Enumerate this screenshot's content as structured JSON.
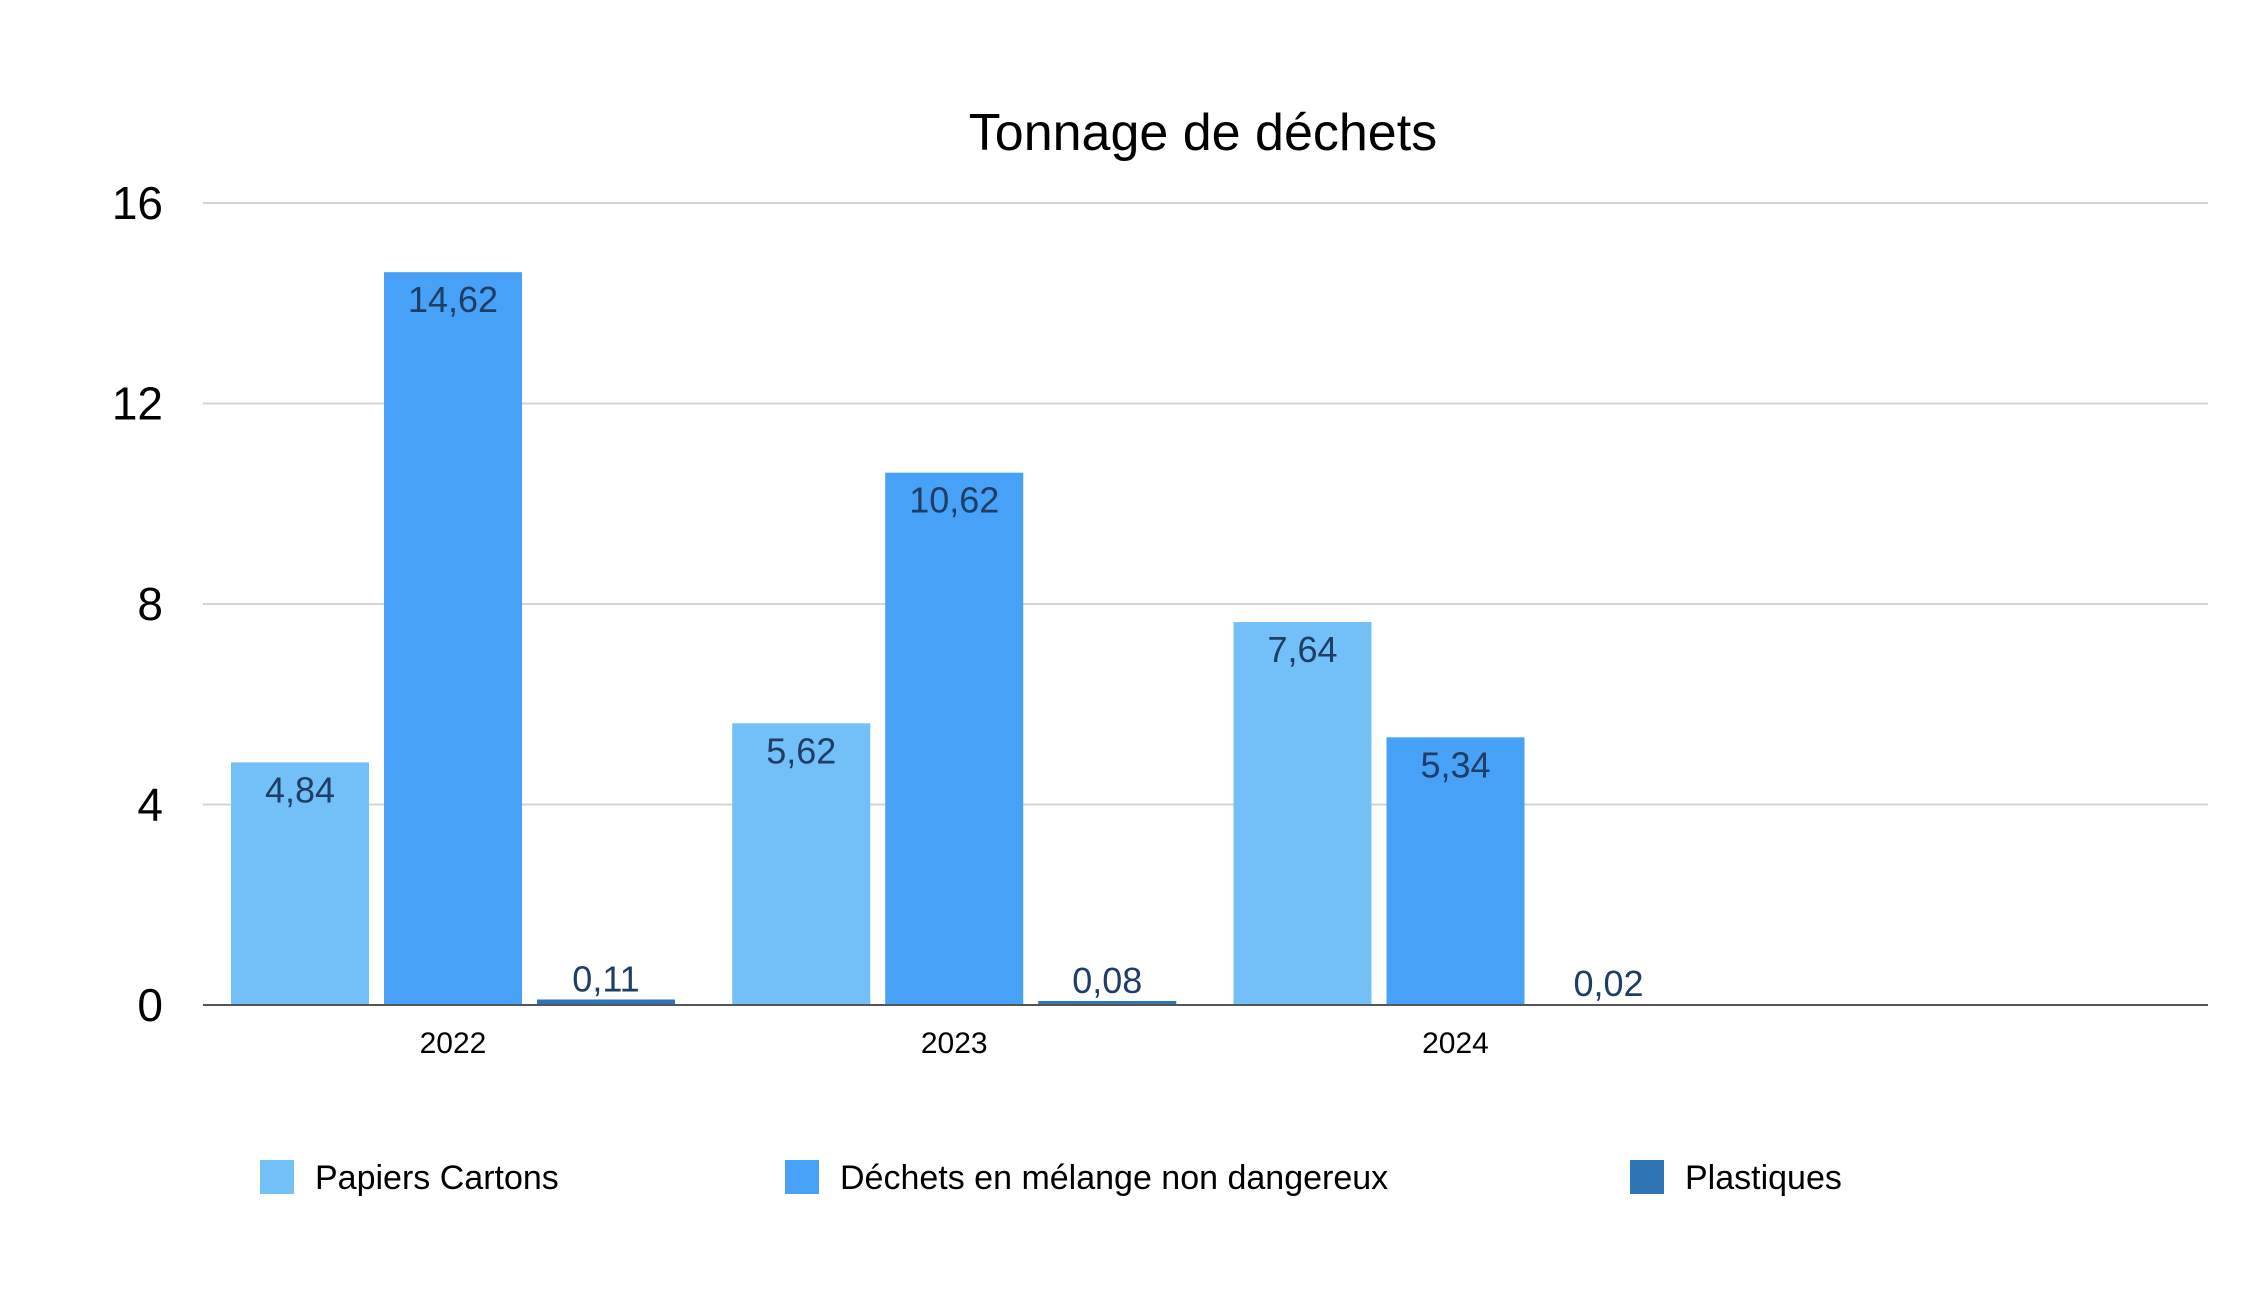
{
  "chart_data": {
    "type": "bar",
    "title": "Tonnage de déchets",
    "xlabel": "",
    "ylabel": "",
    "categories": [
      "2022",
      "2023",
      "2024"
    ],
    "series": [
      {
        "name": "Papiers Cartons",
        "values": [
          4.84,
          5.62,
          7.64
        ],
        "labels": [
          "4,84",
          "5,62",
          "7,64"
        ],
        "color": "#73c0f8"
      },
      {
        "name": "Déchets en mélange non dangereux",
        "values": [
          14.62,
          10.62,
          5.34
        ],
        "labels": [
          "14,62",
          "10,62",
          "5,34"
        ],
        "color": "#47a1f6"
      },
      {
        "name": "Plastiques",
        "values": [
          0.11,
          0.08,
          0.02
        ],
        "labels": [
          "0,11",
          "0,08",
          "0,02"
        ],
        "color": "#2f75b5"
      }
    ],
    "ylim": [
      0,
      16
    ],
    "yticks": [
      "0",
      "4",
      "8",
      "12",
      "16"
    ],
    "grid": true,
    "legend_position": "bottom",
    "empty_category_slots": 1
  },
  "colors": {
    "gridline": "#d4d4d4",
    "axis": "#555555",
    "data_label": "#1f3d66"
  }
}
